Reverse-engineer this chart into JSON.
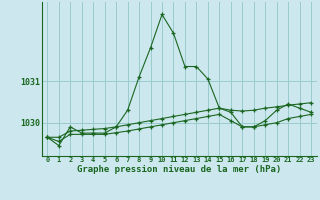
{
  "title": "Graphe pression niveau de la mer (hPa)",
  "background_color": "#cce8ee",
  "grid_color": "#99cccc",
  "line_color": "#1a6620",
  "x_labels": [
    "0",
    "1",
    "2",
    "3",
    "4",
    "5",
    "6",
    "7",
    "8",
    "9",
    "10",
    "11",
    "12",
    "13",
    "14",
    "15",
    "16",
    "17",
    "18",
    "19",
    "20",
    "21",
    "22",
    "23"
  ],
  "ylim": [
    1029.2,
    1032.9
  ],
  "yticks": [
    1030,
    1031
  ],
  "series_main": [
    1029.65,
    1029.45,
    1029.9,
    1029.75,
    1029.75,
    1029.75,
    1029.9,
    1030.3,
    1031.1,
    1031.8,
    1032.6,
    1032.15,
    1031.35,
    1031.35,
    1031.05,
    1030.35,
    1030.25,
    1029.9,
    1029.9,
    1030.05,
    1030.3,
    1030.45,
    1030.35,
    1030.25
  ],
  "series_flat1": [
    1029.65,
    1029.65,
    1029.8,
    1029.82,
    1029.84,
    1029.86,
    1029.9,
    1029.95,
    1030.0,
    1030.05,
    1030.1,
    1030.15,
    1030.2,
    1030.25,
    1030.3,
    1030.35,
    1030.3,
    1030.28,
    1030.3,
    1030.35,
    1030.38,
    1030.42,
    1030.45,
    1030.48
  ],
  "series_flat2": [
    1029.65,
    1029.55,
    1029.72,
    1029.72,
    1029.72,
    1029.72,
    1029.76,
    1029.8,
    1029.85,
    1029.9,
    1029.95,
    1030.0,
    1030.05,
    1030.1,
    1030.15,
    1030.2,
    1030.05,
    1029.9,
    1029.9,
    1029.95,
    1030.0,
    1030.1,
    1030.15,
    1030.2
  ]
}
